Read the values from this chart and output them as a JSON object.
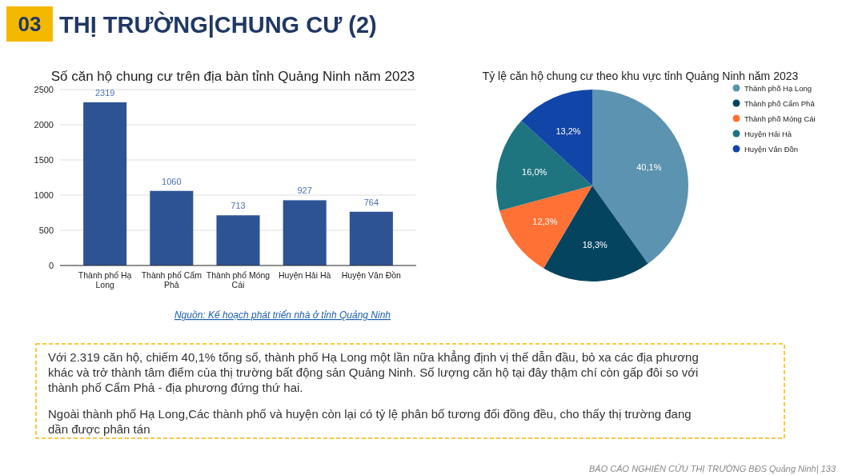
{
  "chart_data": [
    {
      "type": "other",
      "title": "THỊ TRƯỜNG|CHUNG CƯ (2)",
      "annotations": [
        "03",
        "Với 2.319 căn hộ, chiếm 40,1% tổng số, thành phố Hạ Long một lần nữa khẳng định vị thế dẫn đầu, bỏ xa các địa phương khác và trở thành tâm điểm của thị trường bất động sản Quảng Ninh. Số lượng căn hộ tại đây thậm chí còn gấp đôi so với thành phố Cẩm Phả - địa phương đứng thứ hai.",
        "Ngoài thành phố Hạ Long,Các thành phố và huyện còn lại có tỷ lệ phân bố tương đối đồng đều, cho thấy thị trường đang dần được phân tán",
        "BÁO CÁO NGHIÊN CỨU THỊ TRƯỜNG BĐS Quảng Ninh| 133"
      ]
    },
    {
      "type": "bar",
      "title": "Số căn hộ chung cư trên địa bàn tỉnh Quảng Ninh năm 2023",
      "categories": [
        "Thành phố Hạ Long",
        "Thành phố Cẩm Phả",
        "Thành phố Móng Cái",
        "Huyện Hải Hà",
        "Huyện Vân Đồn"
      ],
      "values": [
        2319,
        1060,
        713,
        927,
        764
      ],
      "color": "#2d5395",
      "ylim": [
        0,
        2500
      ],
      "yticks": [
        0,
        500,
        1000,
        1500,
        2000,
        2500
      ],
      "grid": "y",
      "data_labels": true,
      "annotations": [
        "Nguồn: Kế hoạch phát triển nhà ở tỉnh Quảng Ninh"
      ]
    },
    {
      "type": "pie",
      "title": "Tỷ lệ căn hộ chung cư theo khu vực tỉnh Quảng Ninh năm 2023",
      "categories": [
        "Thành phố Hạ Long",
        "Thành phố Cẩm Phả",
        "Thành phố Móng Cái",
        "Huyện Hải Hà",
        "Huyện Vân Đồn"
      ],
      "values": [
        40.1,
        18.3,
        12.3,
        16.0,
        13.2
      ],
      "colors": [
        "#5b93b0",
        "#04445f",
        "#ff7134",
        "#1e7580",
        "#1145a8"
      ],
      "value_labels": [
        "40,1%",
        "18,3%",
        "12,3%",
        "16,0%",
        "13,2%"
      ],
      "legend": "right"
    }
  ]
}
